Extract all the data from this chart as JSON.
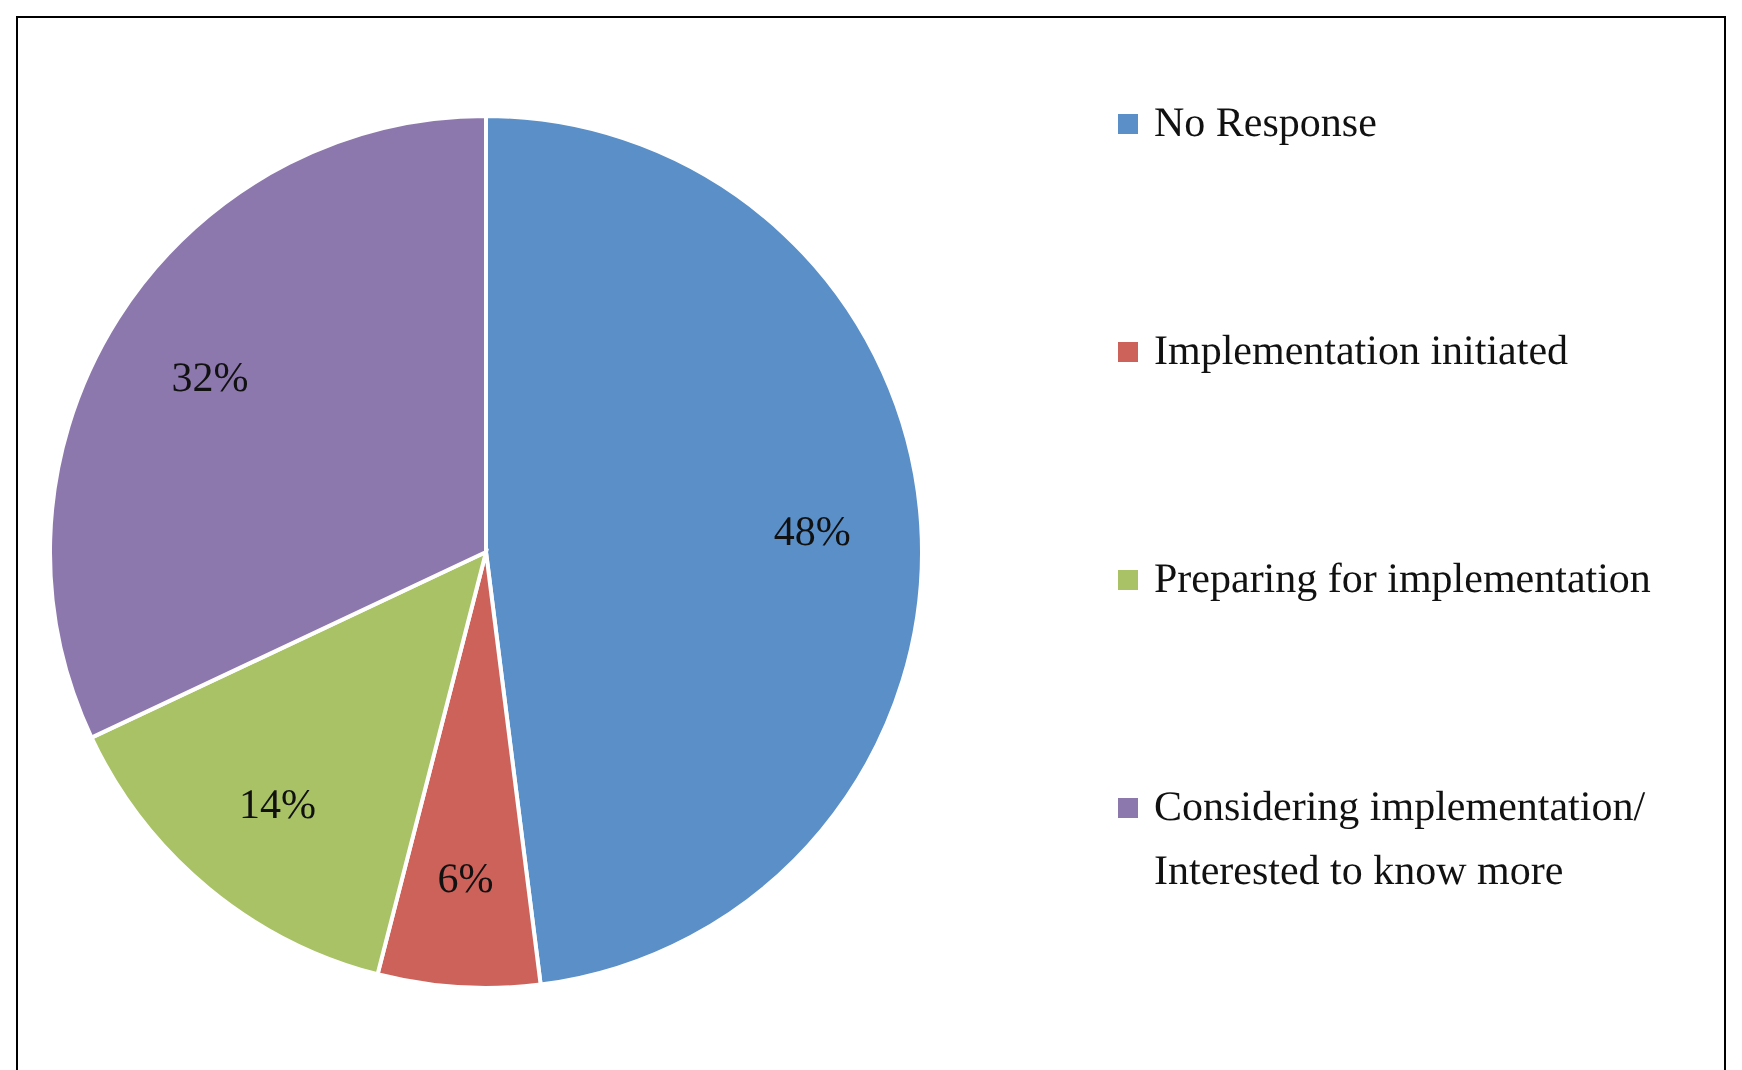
{
  "chart_data": {
    "type": "pie",
    "categories": [
      "No Response",
      "Implementation initiated",
      "Preparing for implementation",
      "Considering implementation/ Interested to know more"
    ],
    "values": [
      48,
      6,
      14,
      32
    ],
    "colors": [
      "#5b8fc7",
      "#cc625a",
      "#a8c265",
      "#8d78ae"
    ],
    "value_labels": [
      "48%",
      "6%",
      "14%",
      "32%"
    ],
    "legend": "right"
  }
}
